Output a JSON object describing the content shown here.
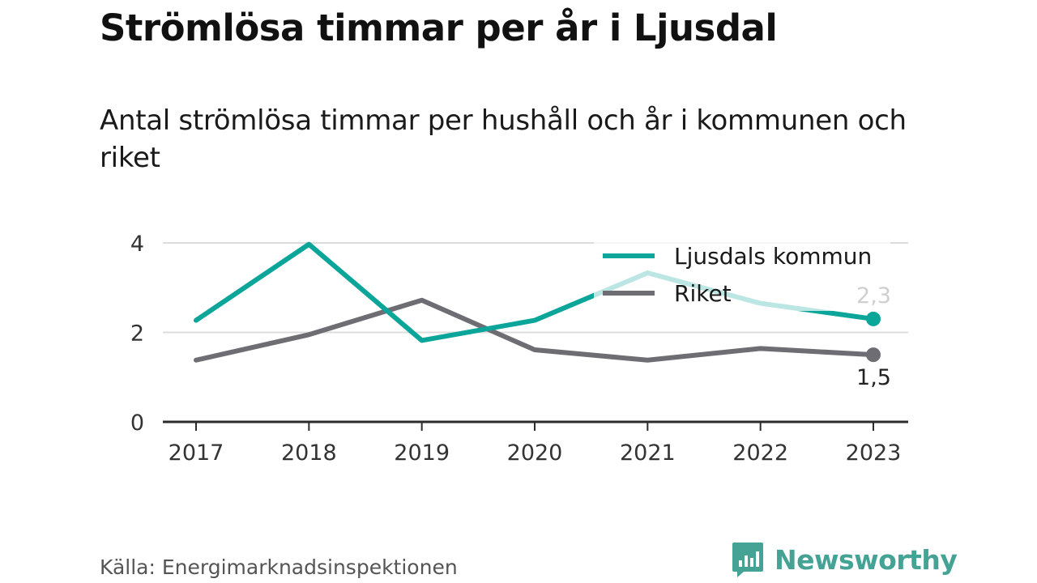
{
  "title": "Strömlösa timmar per år i Ljusdal",
  "subtitle": "Antal strömlösa timmar per hushåll och år i kommunen och riket",
  "source": "Källa: Energimarknadsinspektionen",
  "brand": {
    "name": "Newsworthy",
    "icon": "newsworthy-logo-icon",
    "color": "#45a396"
  },
  "chart_data": {
    "type": "line",
    "x": [
      "2017",
      "2018",
      "2019",
      "2020",
      "2021",
      "2022",
      "2023"
    ],
    "ylim": [
      0,
      4
    ],
    "yticks": [
      0,
      2,
      4
    ],
    "grid": true,
    "legend_position": "top-right",
    "series": [
      {
        "name": "Ljusdals kommun",
        "color": "#0ba59a",
        "values": [
          2.27,
          3.97,
          1.82,
          2.27,
          3.33,
          2.65,
          2.3
        ],
        "end_label": "2,3"
      },
      {
        "name": "Riket",
        "color": "#6e6d74",
        "values": [
          1.38,
          1.95,
          2.72,
          1.61,
          1.38,
          1.64,
          1.5
        ],
        "end_label": "1,5"
      }
    ]
  }
}
